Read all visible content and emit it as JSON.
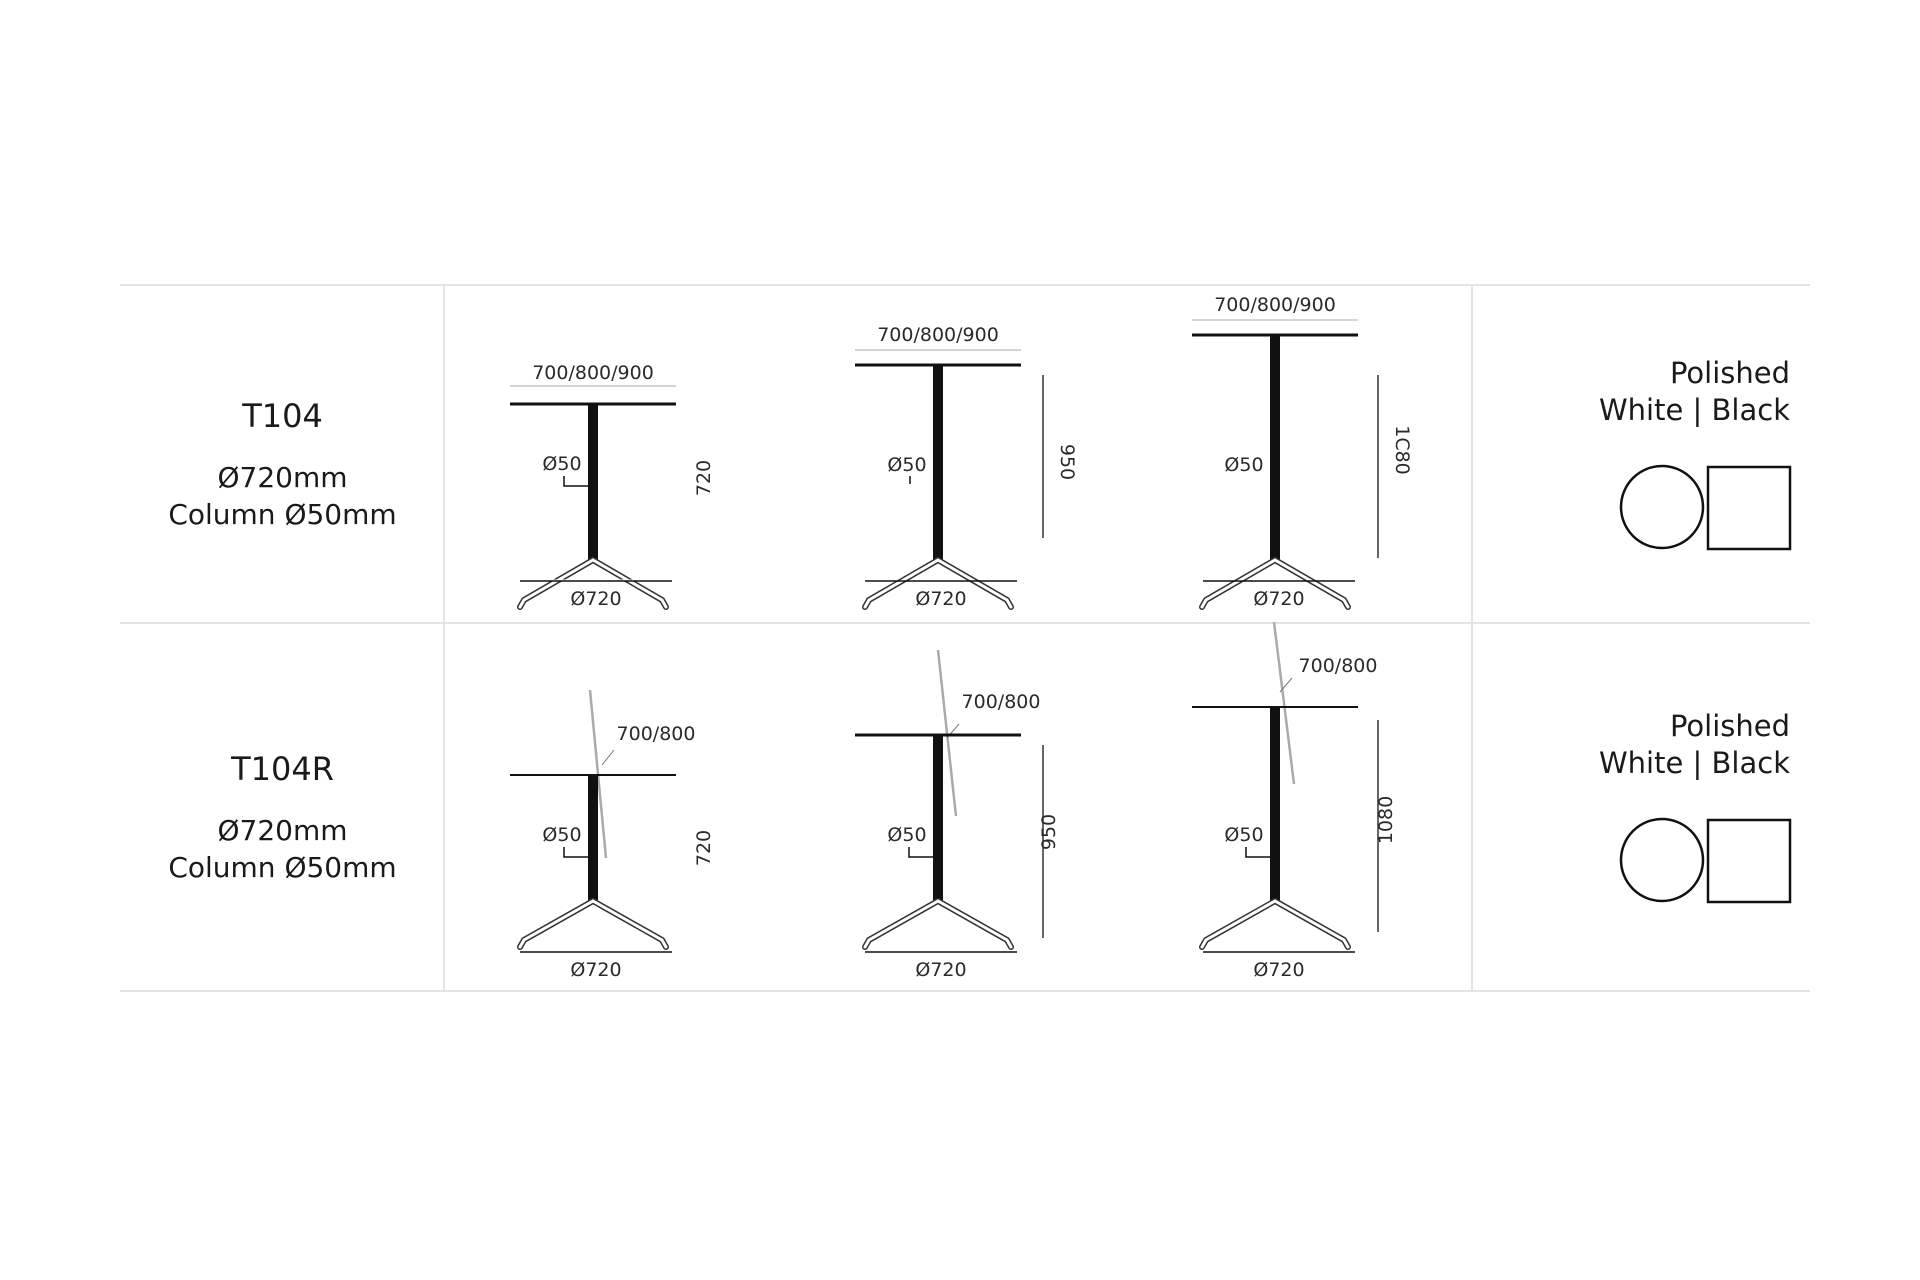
{
  "rows": [
    {
      "model": "T104",
      "diameter": "Ø720mm",
      "column": "Column Ø50mm",
      "finish_line1": "Polished",
      "finish_line2": "White | Black",
      "drawings": [
        {
          "top_label": "700/800/900",
          "column_label": "Ø50",
          "height_label": "720",
          "base_label": "Ø720"
        },
        {
          "top_label": "700/800/900",
          "column_label": "Ø50",
          "height_label": "950",
          "base_label": "Ø720"
        },
        {
          "top_label": "700/800/900",
          "column_label": "Ø50",
          "height_label": "1C80",
          "base_label": "Ø720"
        }
      ]
    },
    {
      "model": "T104R",
      "diameter": "Ø720mm",
      "column": "Column Ø50mm",
      "finish_line1": "Polished",
      "finish_line2": "White | Black",
      "drawings": [
        {
          "top_label": "700/800",
          "column_label": "Ø50",
          "height_label": "720",
          "base_label": "Ø720"
        },
        {
          "top_label": "700/800",
          "column_label": "Ø50",
          "height_label": "950",
          "base_label": "Ø720"
        },
        {
          "top_label": "700/800",
          "column_label": "Ø50",
          "height_label": "1080",
          "base_label": "Ø720"
        }
      ]
    }
  ]
}
